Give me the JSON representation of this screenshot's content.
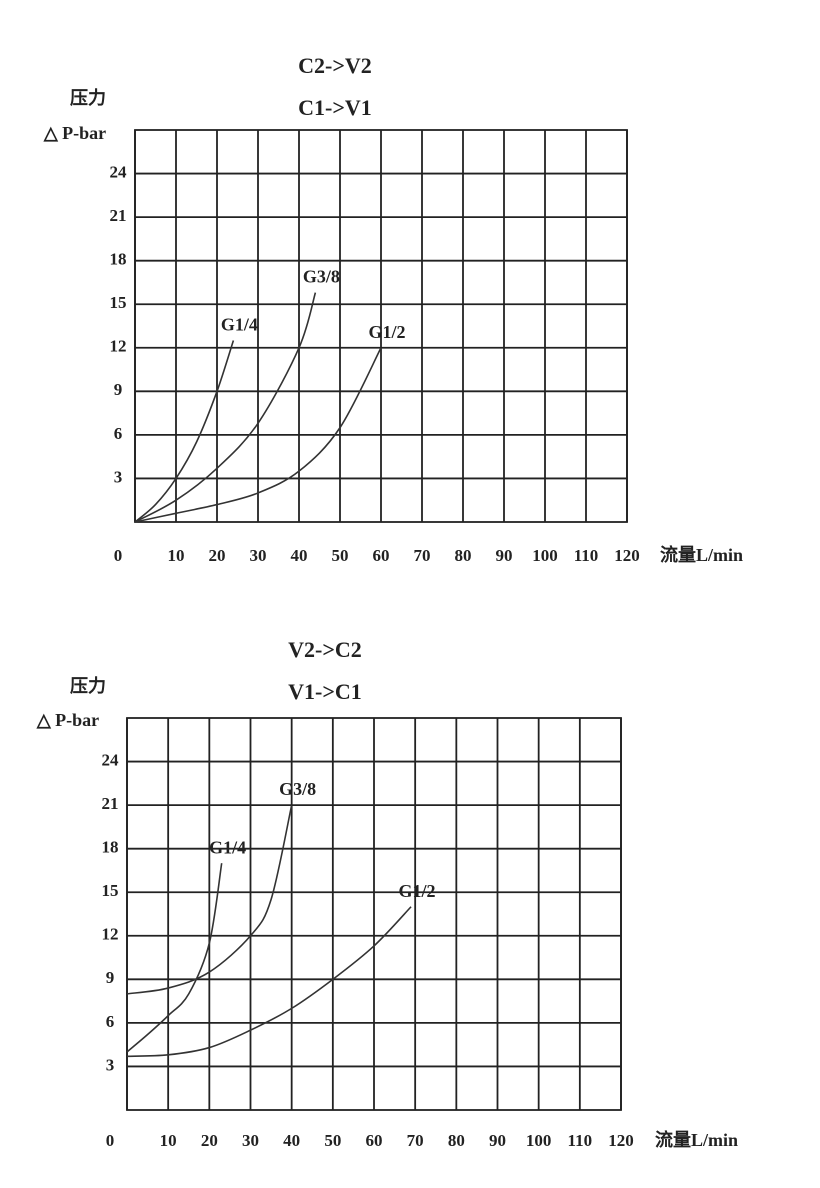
{
  "chart_data": [
    {
      "type": "line",
      "title_lines": [
        "C2->V2",
        "C1->V1"
      ],
      "y_label": [
        "压力",
        "△ P-bar"
      ],
      "x_label": "流量L/min",
      "xlim": [
        0,
        120
      ],
      "ylim": [
        0,
        27
      ],
      "xticks": [
        0,
        10,
        20,
        30,
        40,
        50,
        60,
        70,
        80,
        90,
        100,
        110,
        120
      ],
      "yticks": [
        3,
        6,
        9,
        12,
        15,
        18,
        21,
        24
      ],
      "grid": true,
      "series": [
        {
          "name": "G1/4",
          "color": "#333333",
          "x": [
            0,
            5,
            10,
            15,
            20,
            24
          ],
          "values": [
            0,
            1.2,
            3,
            5.5,
            9,
            12.5
          ]
        },
        {
          "name": "G3/8",
          "color": "#333333",
          "x": [
            0,
            10,
            20,
            30,
            40,
            44
          ],
          "values": [
            0,
            1.5,
            3.7,
            6.8,
            12,
            15.8
          ]
        },
        {
          "name": "G1/2",
          "color": "#333333",
          "x": [
            0,
            10,
            20,
            30,
            40,
            50,
            60
          ],
          "values": [
            0,
            0.6,
            1.2,
            2,
            3.5,
            6.5,
            12
          ]
        }
      ]
    },
    {
      "type": "line",
      "title_lines": [
        "V2->C2",
        "V1->C1"
      ],
      "y_label": [
        "压力",
        "△ P-bar"
      ],
      "x_label": "流量L/min",
      "xlim": [
        0,
        120
      ],
      "ylim": [
        0,
        27
      ],
      "xticks": [
        0,
        10,
        20,
        30,
        40,
        50,
        60,
        70,
        80,
        90,
        100,
        110,
        120
      ],
      "yticks": [
        3,
        6,
        9,
        12,
        15,
        18,
        21,
        24
      ],
      "grid": true,
      "series": [
        {
          "name": "G1/4",
          "color": "#333333",
          "x": [
            0,
            5,
            10,
            15,
            20,
            23
          ],
          "values": [
            4,
            5.2,
            6.5,
            8,
            11.5,
            17
          ]
        },
        {
          "name": "G3/8",
          "color": "#333333",
          "x": [
            0,
            10,
            20,
            30,
            35,
            40
          ],
          "values": [
            8,
            8.4,
            9.5,
            12,
            14.5,
            21
          ]
        },
        {
          "name": "G1/2",
          "color": "#333333",
          "x": [
            0,
            10,
            20,
            30,
            40,
            50,
            60,
            69
          ],
          "values": [
            3.7,
            3.8,
            4.3,
            5.5,
            7,
            9,
            11.3,
            14
          ]
        }
      ]
    }
  ]
}
